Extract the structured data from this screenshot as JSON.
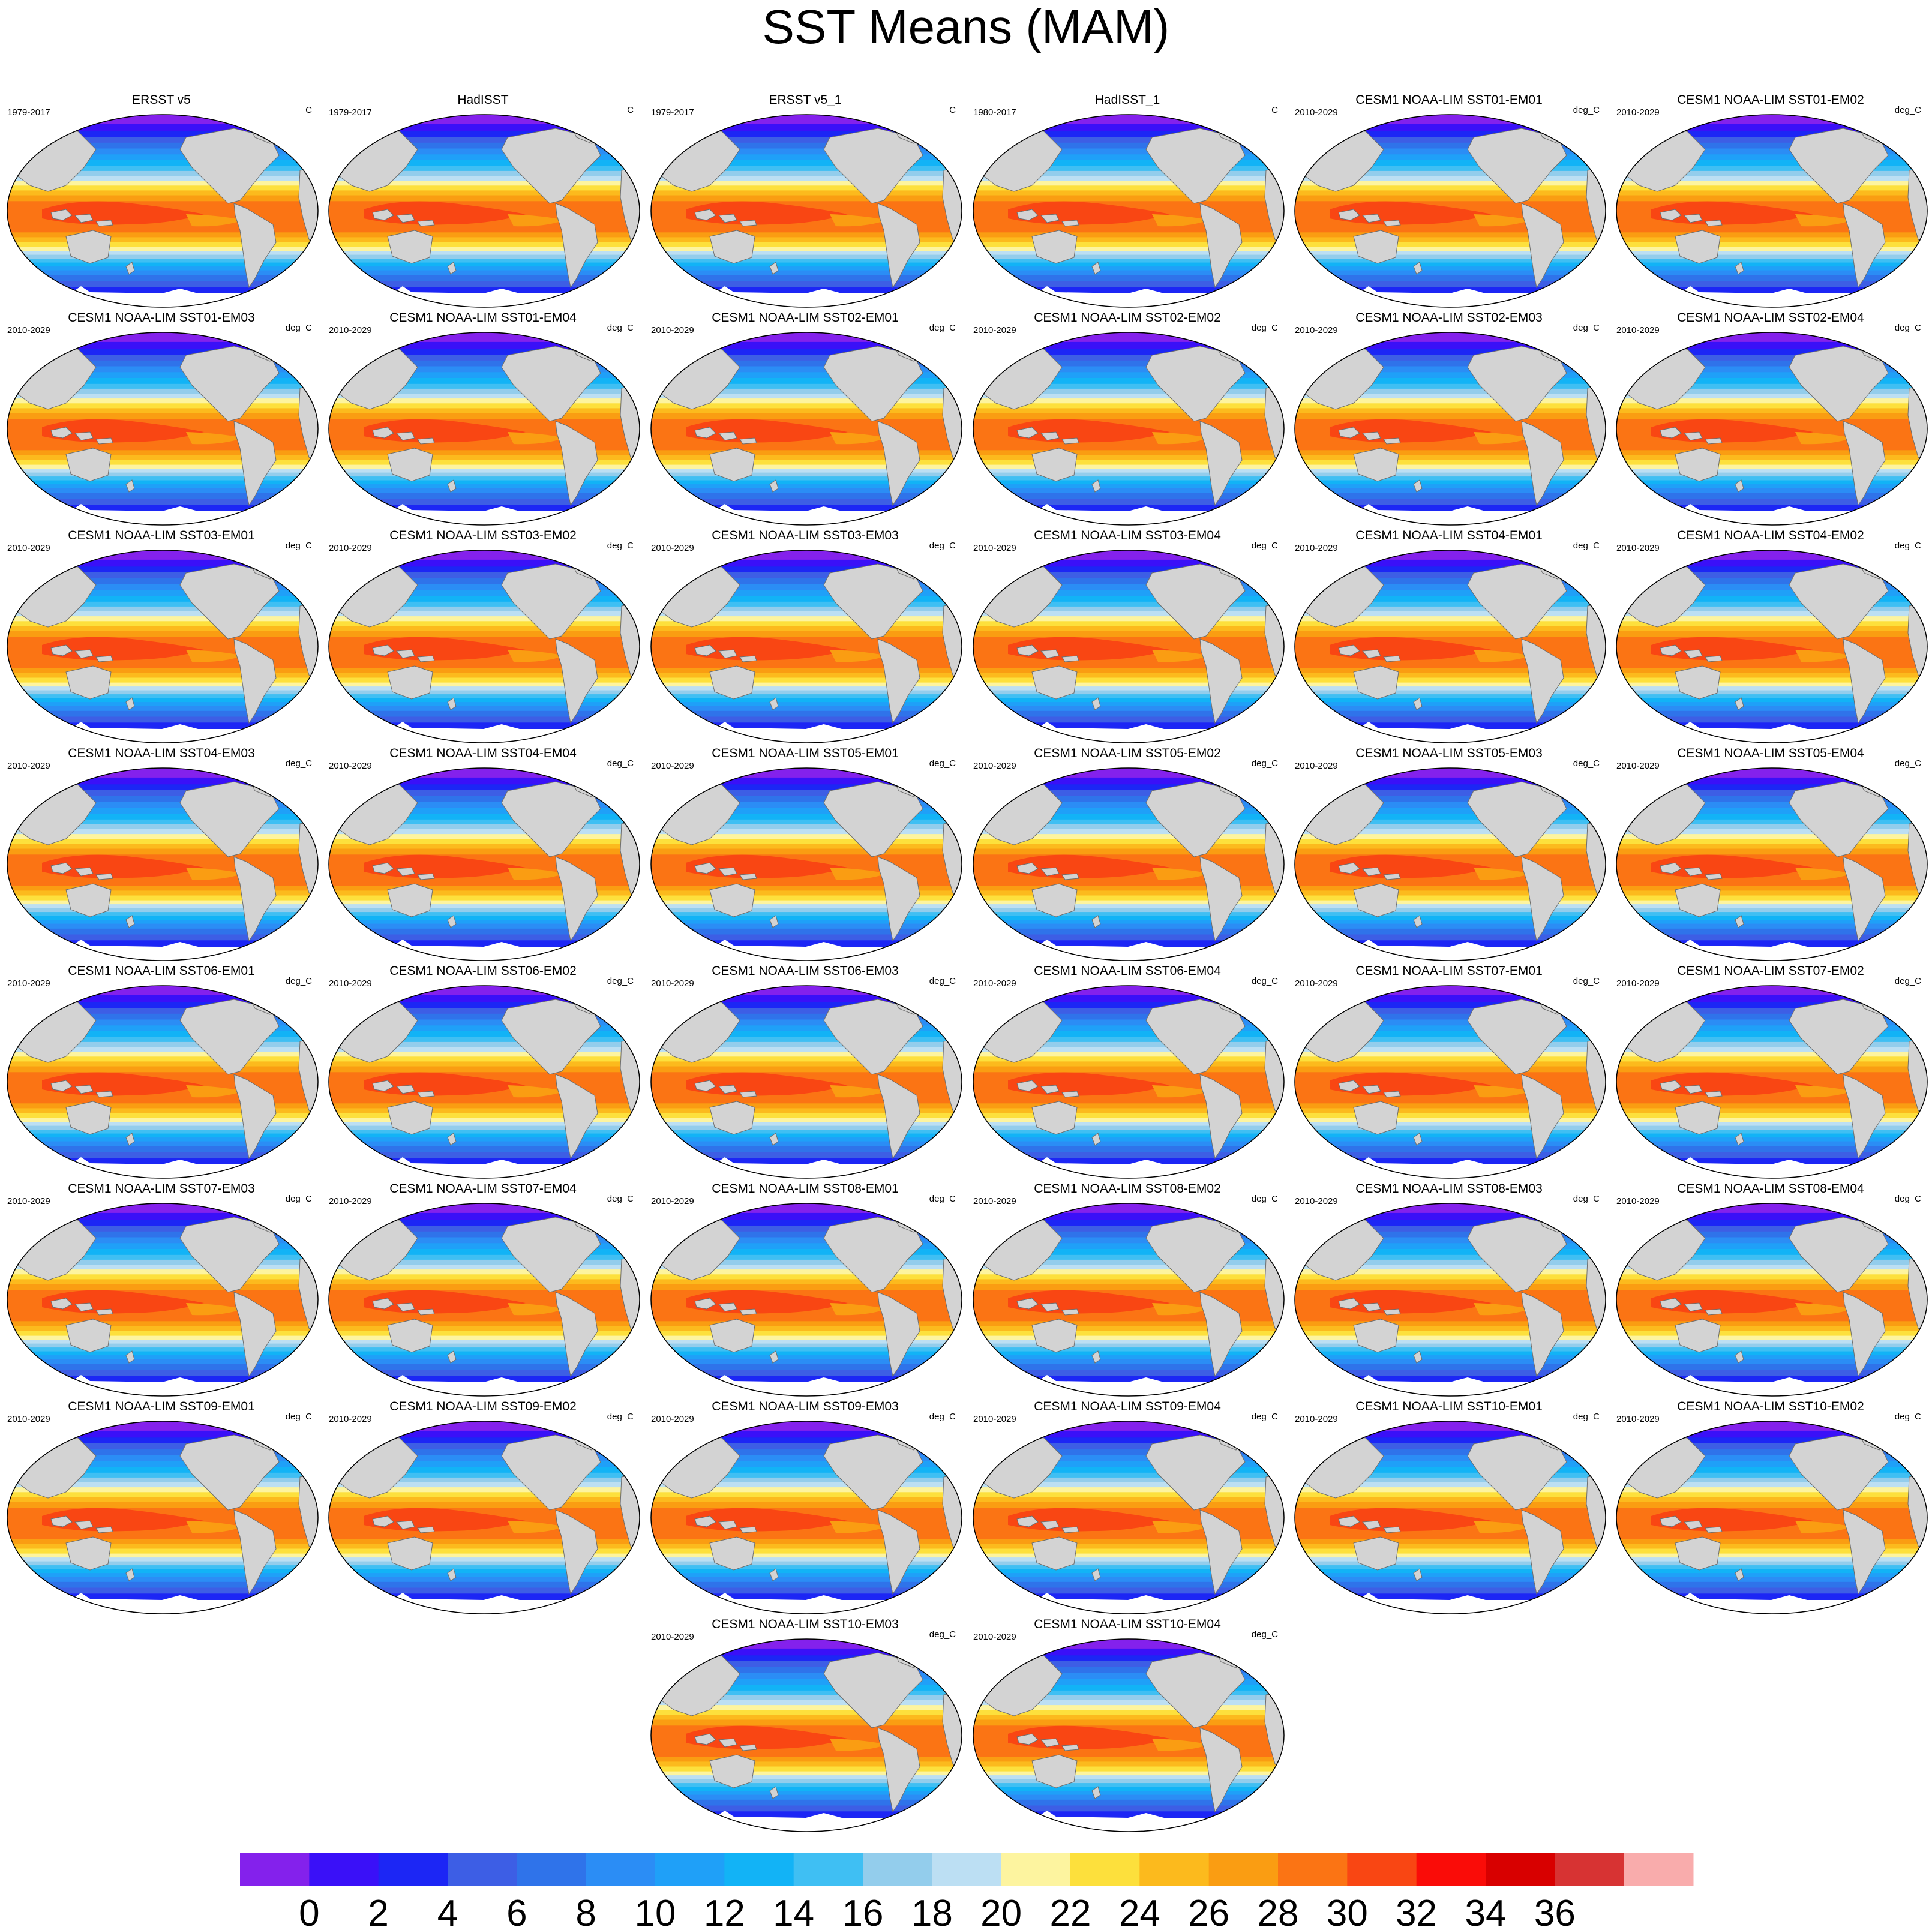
{
  "title": "SST Means (MAM)",
  "panels": [
    {
      "title": "ERSST v5",
      "period": "1979-2017",
      "units": "C"
    },
    {
      "title": "HadISST",
      "period": "1979-2017",
      "units": "C"
    },
    {
      "title": "ERSST v5_1",
      "period": "1979-2017",
      "units": "C"
    },
    {
      "title": "HadISST_1",
      "period": "1980-2017",
      "units": "C"
    },
    {
      "title": "CESM1 NOAA-LIM SST01-EM01",
      "period": "2010-2029",
      "units": "deg_C"
    },
    {
      "title": "CESM1 NOAA-LIM SST01-EM02",
      "period": "2010-2029",
      "units": "deg_C"
    },
    {
      "title": "CESM1 NOAA-LIM SST01-EM03",
      "period": "2010-2029",
      "units": "deg_C"
    },
    {
      "title": "CESM1 NOAA-LIM SST01-EM04",
      "period": "2010-2029",
      "units": "deg_C"
    },
    {
      "title": "CESM1 NOAA-LIM SST02-EM01",
      "period": "2010-2029",
      "units": "deg_C"
    },
    {
      "title": "CESM1 NOAA-LIM SST02-EM02",
      "period": "2010-2029",
      "units": "deg_C"
    },
    {
      "title": "CESM1 NOAA-LIM SST02-EM03",
      "period": "2010-2029",
      "units": "deg_C"
    },
    {
      "title": "CESM1 NOAA-LIM SST02-EM04",
      "period": "2010-2029",
      "units": "deg_C"
    },
    {
      "title": "CESM1 NOAA-LIM SST03-EM01",
      "period": "2010-2029",
      "units": "deg_C"
    },
    {
      "title": "CESM1 NOAA-LIM SST03-EM02",
      "period": "2010-2029",
      "units": "deg_C"
    },
    {
      "title": "CESM1 NOAA-LIM SST03-EM03",
      "period": "2010-2029",
      "units": "deg_C"
    },
    {
      "title": "CESM1 NOAA-LIM SST03-EM04",
      "period": "2010-2029",
      "units": "deg_C"
    },
    {
      "title": "CESM1 NOAA-LIM SST04-EM01",
      "period": "2010-2029",
      "units": "deg_C"
    },
    {
      "title": "CESM1 NOAA-LIM SST04-EM02",
      "period": "2010-2029",
      "units": "deg_C"
    },
    {
      "title": "CESM1 NOAA-LIM SST04-EM03",
      "period": "2010-2029",
      "units": "deg_C"
    },
    {
      "title": "CESM1 NOAA-LIM SST04-EM04",
      "period": "2010-2029",
      "units": "deg_C"
    },
    {
      "title": "CESM1 NOAA-LIM SST05-EM01",
      "period": "2010-2029",
      "units": "deg_C"
    },
    {
      "title": "CESM1 NOAA-LIM SST05-EM02",
      "period": "2010-2029",
      "units": "deg_C"
    },
    {
      "title": "CESM1 NOAA-LIM SST05-EM03",
      "period": "2010-2029",
      "units": "deg_C"
    },
    {
      "title": "CESM1 NOAA-LIM SST05-EM04",
      "period": "2010-2029",
      "units": "deg_C"
    },
    {
      "title": "CESM1 NOAA-LIM SST06-EM01",
      "period": "2010-2029",
      "units": "deg_C"
    },
    {
      "title": "CESM1 NOAA-LIM SST06-EM02",
      "period": "2010-2029",
      "units": "deg_C"
    },
    {
      "title": "CESM1 NOAA-LIM SST06-EM03",
      "period": "2010-2029",
      "units": "deg_C"
    },
    {
      "title": "CESM1 NOAA-LIM SST06-EM04",
      "period": "2010-2029",
      "units": "deg_C"
    },
    {
      "title": "CESM1 NOAA-LIM SST07-EM01",
      "period": "2010-2029",
      "units": "deg_C"
    },
    {
      "title": "CESM1 NOAA-LIM SST07-EM02",
      "period": "2010-2029",
      "units": "deg_C"
    },
    {
      "title": "CESM1 NOAA-LIM SST07-EM03",
      "period": "2010-2029",
      "units": "deg_C"
    },
    {
      "title": "CESM1 NOAA-LIM SST07-EM04",
      "period": "2010-2029",
      "units": "deg_C"
    },
    {
      "title": "CESM1 NOAA-LIM SST08-EM01",
      "period": "2010-2029",
      "units": "deg_C"
    },
    {
      "title": "CESM1 NOAA-LIM SST08-EM02",
      "period": "2010-2029",
      "units": "deg_C"
    },
    {
      "title": "CESM1 NOAA-LIM SST08-EM03",
      "period": "2010-2029",
      "units": "deg_C"
    },
    {
      "title": "CESM1 NOAA-LIM SST08-EM04",
      "period": "2010-2029",
      "units": "deg_C"
    },
    {
      "title": "CESM1 NOAA-LIM SST09-EM01",
      "period": "2010-2029",
      "units": "deg_C"
    },
    {
      "title": "CESM1 NOAA-LIM SST09-EM02",
      "period": "2010-2029",
      "units": "deg_C"
    },
    {
      "title": "CESM1 NOAA-LIM SST09-EM03",
      "period": "2010-2029",
      "units": "deg_C"
    },
    {
      "title": "CESM1 NOAA-LIM SST09-EM04",
      "period": "2010-2029",
      "units": "deg_C"
    },
    {
      "title": "CESM1 NOAA-LIM SST10-EM01",
      "period": "2010-2029",
      "units": "deg_C"
    },
    {
      "title": "CESM1 NOAA-LIM SST10-EM02",
      "period": "2010-2029",
      "units": "deg_C"
    },
    {
      "title": "CESM1 NOAA-LIM SST10-EM03",
      "period": "2010-2029",
      "units": "deg_C"
    },
    {
      "title": "CESM1 NOAA-LIM SST10-EM04",
      "period": "2010-2029",
      "units": "deg_C"
    }
  ],
  "colorbar": {
    "tick_labels": [
      "0",
      "2",
      "4",
      "6",
      "8",
      "10",
      "12",
      "14",
      "16",
      "18",
      "20",
      "22",
      "24",
      "26",
      "28",
      "30",
      "32",
      "34",
      "36"
    ],
    "colors": [
      "#8421ec",
      "#3a10f8",
      "#1c26f5",
      "#3d5ee5",
      "#2f73ea",
      "#2b8df5",
      "#1fa0f8",
      "#12b3f6",
      "#3fbff3",
      "#93cdec",
      "#bcdff3",
      "#fdf49f",
      "#fde03c",
      "#fcba1d",
      "#fa9d12",
      "#fb7414",
      "#f94613",
      "#fa0c08",
      "#d80000",
      "#d73333",
      "#f9acac"
    ]
  },
  "map_colors": {
    "land": "#d3d3d3",
    "ice": "#ffffff",
    "coast": "#6e6e6e"
  }
}
